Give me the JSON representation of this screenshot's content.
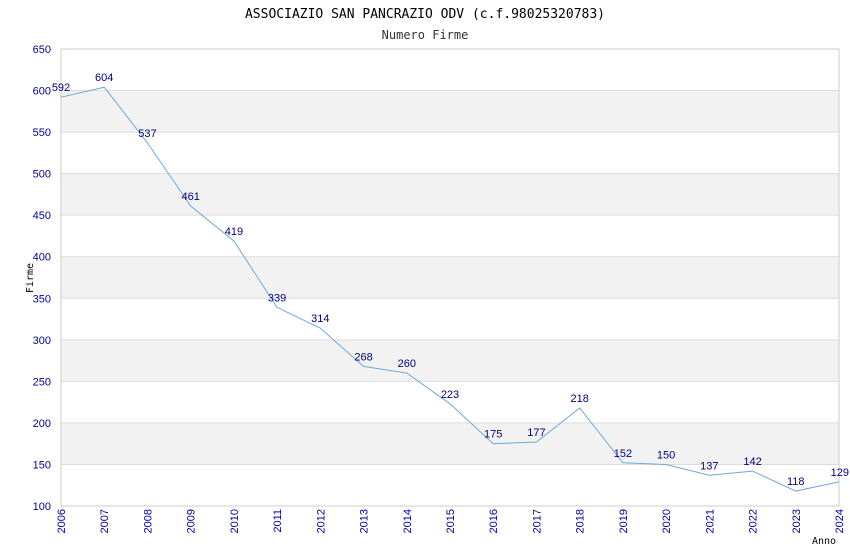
{
  "chart_data": {
    "type": "line",
    "title": "ASSOCIAZIO SAN PANCRAZIO ODV (c.f.98025320783)",
    "subtitle": "Numero Firme",
    "xlabel": "Anno",
    "ylabel": "Firme",
    "x": [
      "2006",
      "2007",
      "2008",
      "2009",
      "2010",
      "2011",
      "2012",
      "2013",
      "2014",
      "2015",
      "2016",
      "2017",
      "2018",
      "2019",
      "2020",
      "2021",
      "2022",
      "2023",
      "2024"
    ],
    "series": [
      {
        "name": "Numero Firme",
        "values": [
          592,
          604,
          537,
          461,
          419,
          339,
          314,
          268,
          260,
          223,
          175,
          177,
          218,
          152,
          150,
          137,
          142,
          118,
          129
        ]
      }
    ],
    "yticks": [
      100,
      150,
      200,
      250,
      300,
      350,
      400,
      450,
      500,
      550,
      600,
      650
    ],
    "ylim": [
      100,
      650
    ],
    "grid": true,
    "line_color": "#6fa8dc",
    "band_color": "#f2f2f2",
    "grid_color": "#dddddd"
  }
}
